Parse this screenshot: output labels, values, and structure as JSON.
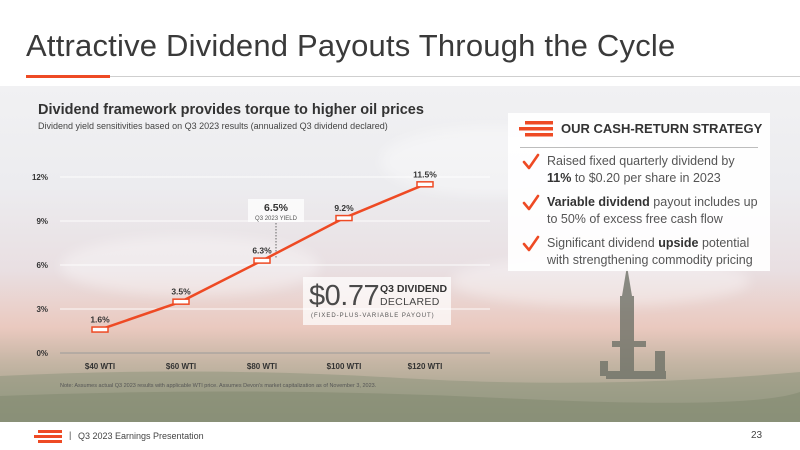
{
  "slide": {
    "title": "Attractive Dividend Payouts Through the Cycle",
    "accent_color": "#ee4a24",
    "footer": "Q3 2023 Earnings Presentation",
    "footer_separator": "|",
    "page_number": "23"
  },
  "chart_data": {
    "type": "line",
    "title": "Dividend framework provides torque to higher oil prices",
    "subtitle": "Dividend yield sensitivities based on Q3 2023 results (annualized Q3 dividend declared)",
    "categories": [
      "$40 WTI",
      "$60 WTI",
      "$80 WTI",
      "$100 WTI",
      "$120 WTI"
    ],
    "values": [
      1.6,
      3.5,
      6.3,
      9.2,
      11.5
    ],
    "data_labels": [
      "1.6%",
      "3.5%",
      "6.3%",
      "9.2%",
      "11.5%"
    ],
    "y_ticks": [
      0,
      3,
      6,
      9,
      12
    ],
    "y_tick_labels": [
      "0%",
      "3%",
      "6%",
      "9%",
      "12%"
    ],
    "ylim": [
      0,
      12
    ],
    "grid": true,
    "line_color": "#ee4a24",
    "annotation": {
      "value": "6.5%",
      "label": "Q3 2023 YIELD",
      "y_value": 6.5
    },
    "note": "Note: Assumes actual Q3 2023 results with applicable WTI price. Assumes Devon's market capitalization as of November 3, 2023."
  },
  "dividend_callout": {
    "amount": "$0.77",
    "label_line1": "Q3 DIVIDEND",
    "label_line2": "DECLARED",
    "caption": "(FIXED-PLUS-VARIABLE PAYOUT)"
  },
  "strategy": {
    "title": "OUR CASH-RETURN STRATEGY",
    "items": [
      {
        "pre": "Raised fixed quarterly dividend by ",
        "bold": "11%",
        "post": " to $0.20 per share in 2023"
      },
      {
        "pre": "",
        "bold": "Variable dividend",
        "post": " payout includes up to 50% of excess free cash flow"
      },
      {
        "pre": "Significant dividend ",
        "bold": "upside",
        "post": " potential with strengthening commodity pricing"
      }
    ]
  }
}
